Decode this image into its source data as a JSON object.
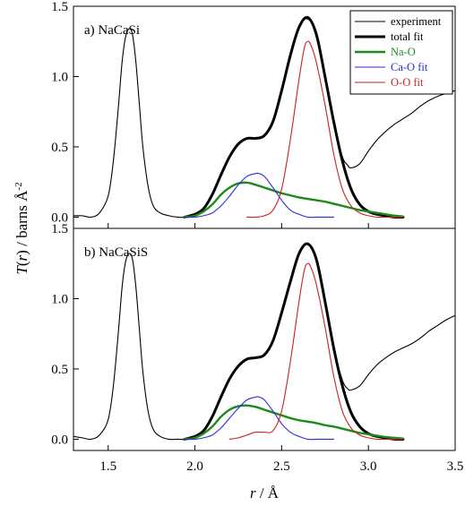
{
  "chart_data": [
    {
      "type": "line",
      "panel_label": "a) NaCaSi",
      "xlim": [
        1.3,
        3.5
      ],
      "ylim": [
        -0.08,
        1.5
      ],
      "xticks": [
        "1.5",
        "2.0",
        "2.5",
        "3.0",
        "3.5"
      ],
      "yticks": [
        "0.0",
        "0.5",
        "1.0",
        "1.5"
      ],
      "legend": {
        "placement": "top-right",
        "entries": [
          "experiment",
          "total fit",
          "Na-O",
          "Ca-O fit",
          "O-O fit"
        ]
      },
      "series": [
        {
          "name": "experiment",
          "color": "#000000",
          "width": 1.1,
          "x": [
            1.3,
            1.35,
            1.4,
            1.45,
            1.5,
            1.53,
            1.56,
            1.58,
            1.6,
            1.62,
            1.64,
            1.66,
            1.68,
            1.7,
            1.73,
            1.76,
            1.8,
            1.85,
            1.9,
            1.95,
            2.0,
            2.05,
            2.1,
            2.15,
            2.2,
            2.25,
            2.3,
            2.35,
            2.4,
            2.45,
            2.5,
            2.55,
            2.6,
            2.65,
            2.7,
            2.75,
            2.8,
            2.85,
            2.88,
            2.9,
            2.95,
            3.0,
            3.05,
            3.1,
            3.15,
            3.2,
            3.25,
            3.3,
            3.35,
            3.4,
            3.45,
            3.5
          ],
          "y": [
            0.01,
            0.01,
            0.0,
            0.03,
            0.15,
            0.4,
            0.8,
            1.1,
            1.28,
            1.34,
            1.3,
            1.1,
            0.8,
            0.5,
            0.22,
            0.08,
            0.03,
            0.01,
            0.0,
            0.0,
            0.02,
            0.06,
            0.16,
            0.3,
            0.43,
            0.52,
            0.56,
            0.56,
            0.58,
            0.68,
            0.9,
            1.15,
            1.35,
            1.41,
            1.3,
            1.0,
            0.68,
            0.43,
            0.37,
            0.35,
            0.38,
            0.47,
            0.55,
            0.61,
            0.66,
            0.7,
            0.74,
            0.79,
            0.83,
            0.86,
            0.88,
            0.9
          ]
        },
        {
          "name": "total fit",
          "color": "#000000",
          "width": 3.0,
          "x": [
            1.94,
            2.0,
            2.05,
            2.1,
            2.15,
            2.2,
            2.25,
            2.3,
            2.35,
            2.4,
            2.45,
            2.5,
            2.55,
            2.6,
            2.65,
            2.7,
            2.75,
            2.8,
            2.85,
            2.9,
            2.95,
            3.0,
            3.05,
            3.1,
            3.15,
            3.2
          ],
          "y": [
            0.0,
            0.02,
            0.06,
            0.16,
            0.3,
            0.43,
            0.52,
            0.56,
            0.56,
            0.58,
            0.68,
            0.9,
            1.15,
            1.35,
            1.42,
            1.3,
            1.0,
            0.68,
            0.4,
            0.2,
            0.09,
            0.04,
            0.02,
            0.01,
            0.0,
            0.0
          ]
        },
        {
          "name": "Na-O",
          "color": "#1a8a1a",
          "width": 2.4,
          "x": [
            1.94,
            2.0,
            2.05,
            2.1,
            2.15,
            2.2,
            2.25,
            2.3,
            2.35,
            2.4,
            2.45,
            2.5,
            2.55,
            2.6,
            2.65,
            2.7,
            2.75,
            2.8,
            2.85,
            2.9,
            2.95,
            3.0,
            3.05,
            3.1,
            3.15,
            3.2
          ],
          "y": [
            0.0,
            0.01,
            0.04,
            0.09,
            0.16,
            0.21,
            0.24,
            0.245,
            0.23,
            0.21,
            0.19,
            0.17,
            0.155,
            0.14,
            0.13,
            0.12,
            0.11,
            0.095,
            0.08,
            0.065,
            0.05,
            0.04,
            0.03,
            0.02,
            0.01,
            0.005
          ]
        },
        {
          "name": "Ca-O fit",
          "color": "#2a2ad8",
          "width": 1.1,
          "x": [
            1.94,
            2.0,
            2.05,
            2.1,
            2.15,
            2.2,
            2.25,
            2.3,
            2.35,
            2.37,
            2.4,
            2.45,
            2.5,
            2.55,
            2.6,
            2.65,
            2.7,
            2.75,
            2.8
          ],
          "y": [
            0.0,
            0.0,
            0.01,
            0.03,
            0.08,
            0.15,
            0.23,
            0.29,
            0.31,
            0.31,
            0.29,
            0.21,
            0.12,
            0.05,
            0.02,
            0.0,
            0.0,
            0.0,
            0.0
          ]
        },
        {
          "name": "O-O fit",
          "color": "#cc2020",
          "width": 1.1,
          "x": [
            2.3,
            2.35,
            2.4,
            2.45,
            2.5,
            2.55,
            2.6,
            2.63,
            2.65,
            2.67,
            2.7,
            2.75,
            2.8,
            2.85,
            2.9,
            2.95,
            3.0,
            3.05,
            3.1,
            3.2
          ],
          "y": [
            0.0,
            0.0,
            0.01,
            0.05,
            0.2,
            0.55,
            0.98,
            1.2,
            1.25,
            1.22,
            1.1,
            0.8,
            0.45,
            0.2,
            0.08,
            0.03,
            0.01,
            0.0,
            0.0,
            0.0
          ]
        }
      ]
    },
    {
      "type": "line",
      "panel_label": "b) NaCaSiS",
      "xlim": [
        1.3,
        3.5
      ],
      "ylim": [
        -0.08,
        1.5
      ],
      "xticks": [
        "1.5",
        "2.0",
        "2.5",
        "3.0",
        "3.5"
      ],
      "yticks": [
        "0.0",
        "0.5",
        "1.0",
        "1.5"
      ],
      "series": [
        {
          "name": "experiment",
          "color": "#000000",
          "width": 1.1,
          "x": [
            1.3,
            1.35,
            1.4,
            1.45,
            1.5,
            1.53,
            1.56,
            1.58,
            1.6,
            1.62,
            1.64,
            1.66,
            1.68,
            1.7,
            1.73,
            1.76,
            1.8,
            1.85,
            1.9,
            1.95,
            2.0,
            2.05,
            2.1,
            2.15,
            2.2,
            2.25,
            2.3,
            2.35,
            2.4,
            2.45,
            2.5,
            2.55,
            2.6,
            2.65,
            2.7,
            2.75,
            2.8,
            2.85,
            2.88,
            2.9,
            2.95,
            3.0,
            3.05,
            3.1,
            3.15,
            3.2,
            3.25,
            3.3,
            3.35,
            3.4,
            3.45,
            3.5
          ],
          "y": [
            0.02,
            0.01,
            0.0,
            0.03,
            0.14,
            0.38,
            0.78,
            1.08,
            1.26,
            1.32,
            1.28,
            1.08,
            0.78,
            0.48,
            0.2,
            0.07,
            0.02,
            0.0,
            0.0,
            0.0,
            0.02,
            0.06,
            0.16,
            0.3,
            0.43,
            0.52,
            0.57,
            0.58,
            0.6,
            0.7,
            0.9,
            1.12,
            1.32,
            1.39,
            1.28,
            0.98,
            0.65,
            0.42,
            0.36,
            0.35,
            0.38,
            0.46,
            0.53,
            0.58,
            0.62,
            0.65,
            0.68,
            0.72,
            0.77,
            0.81,
            0.85,
            0.88
          ]
        },
        {
          "name": "total fit",
          "color": "#000000",
          "width": 3.0,
          "x": [
            1.94,
            2.0,
            2.05,
            2.1,
            2.15,
            2.2,
            2.25,
            2.3,
            2.35,
            2.4,
            2.45,
            2.5,
            2.55,
            2.6,
            2.65,
            2.7,
            2.75,
            2.8,
            2.85,
            2.9,
            2.95,
            3.0,
            3.05,
            3.1,
            3.15,
            3.2
          ],
          "y": [
            0.0,
            0.02,
            0.06,
            0.16,
            0.3,
            0.43,
            0.52,
            0.57,
            0.58,
            0.6,
            0.7,
            0.9,
            1.12,
            1.32,
            1.39,
            1.28,
            0.98,
            0.65,
            0.38,
            0.19,
            0.09,
            0.04,
            0.02,
            0.01,
            0.0,
            0.0
          ]
        },
        {
          "name": "Na-O",
          "color": "#1a8a1a",
          "width": 2.4,
          "x": [
            1.94,
            2.0,
            2.05,
            2.1,
            2.15,
            2.2,
            2.25,
            2.3,
            2.35,
            2.4,
            2.45,
            2.5,
            2.55,
            2.6,
            2.65,
            2.7,
            2.75,
            2.8,
            2.85,
            2.9,
            2.95,
            3.0,
            3.05,
            3.1,
            3.15,
            3.2
          ],
          "y": [
            0.0,
            0.01,
            0.04,
            0.09,
            0.16,
            0.21,
            0.235,
            0.24,
            0.23,
            0.21,
            0.19,
            0.17,
            0.15,
            0.135,
            0.125,
            0.115,
            0.1,
            0.09,
            0.075,
            0.06,
            0.045,
            0.035,
            0.025,
            0.015,
            0.01,
            0.005
          ]
        },
        {
          "name": "Ca-O fit",
          "color": "#2a2ad8",
          "width": 1.1,
          "x": [
            1.94,
            2.0,
            2.05,
            2.1,
            2.15,
            2.2,
            2.25,
            2.3,
            2.35,
            2.37,
            2.4,
            2.45,
            2.5,
            2.55,
            2.6,
            2.65,
            2.7,
            2.75,
            2.8
          ],
          "y": [
            0.0,
            0.0,
            0.01,
            0.03,
            0.08,
            0.15,
            0.22,
            0.28,
            0.3,
            0.3,
            0.28,
            0.2,
            0.11,
            0.05,
            0.02,
            0.0,
            0.0,
            0.0,
            0.0
          ]
        },
        {
          "name": "O-O fit",
          "color": "#cc2020",
          "width": 1.1,
          "x": [
            2.2,
            2.25,
            2.3,
            2.35,
            2.4,
            2.45,
            2.5,
            2.55,
            2.6,
            2.63,
            2.65,
            2.67,
            2.7,
            2.75,
            2.8,
            2.85,
            2.9,
            2.95,
            3.0,
            3.05,
            3.1,
            3.2
          ],
          "y": [
            0.0,
            0.01,
            0.03,
            0.05,
            0.05,
            0.06,
            0.2,
            0.55,
            0.98,
            1.2,
            1.25,
            1.22,
            1.1,
            0.8,
            0.45,
            0.2,
            0.08,
            0.03,
            0.01,
            0.0,
            0.0,
            0.0
          ]
        }
      ]
    }
  ],
  "x_axis_label": "r / Å",
  "y_axis_label": "T(r) / barns Å-2"
}
